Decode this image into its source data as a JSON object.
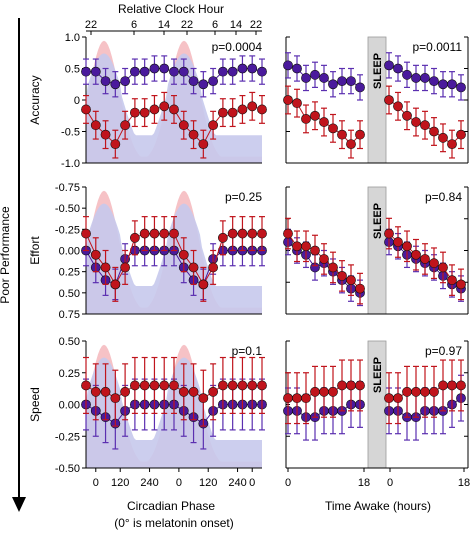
{
  "figure": {
    "top_axis_label": "Relative Clock Hour",
    "top_ticks": [
      "22",
      "6",
      "14",
      "22",
      "6",
      "14",
      "22"
    ],
    "side_label": "Poor Performance",
    "left_xlabel": "Circadian Phase",
    "left_note": "(0° is melatonin onset)",
    "right_xlabel": "Time Awake (hours)",
    "left_xticks": [
      "0",
      "120",
      "240",
      "0",
      "120",
      "240",
      "0"
    ],
    "right_xticks": [
      "0",
      "18",
      "0",
      "18"
    ],
    "sleep_label": "SLEEP",
    "colors": {
      "red_series": "#c0141c",
      "blue_series": "#4a1a9c",
      "red_shade": "#f6c2c6",
      "blue_shade": "#c7c9ec",
      "sleep_box": "#d6d6d6",
      "error_red": "#c0141c",
      "error_blue": "#5b2fb0"
    }
  },
  "chart_data": [
    {
      "panel": "accuracy-phase",
      "type": "line",
      "ylabel": "Accuracy",
      "ylim": [
        -1.0,
        1.0
      ],
      "yticks": [
        "1.0",
        "0.5",
        "0",
        "-0.5",
        "-1.0"
      ],
      "pvalue": "p=0.0004",
      "x": [
        -20,
        20,
        60,
        100,
        140,
        180,
        220,
        260,
        300,
        340,
        380,
        420,
        460,
        500,
        540,
        580,
        620,
        660,
        700
      ],
      "series": [
        {
          "color": "blue",
          "values": [
            0.45,
            0.45,
            0.3,
            0.25,
            0.3,
            0.45,
            0.45,
            0.5,
            0.5,
            0.45,
            0.45,
            0.3,
            0.25,
            0.3,
            0.45,
            0.45,
            0.5,
            0.5,
            0.45
          ],
          "err": [
            0.2,
            0.2,
            0.2,
            0.2,
            0.2,
            0.2,
            0.2,
            0.2,
            0.2,
            0.2,
            0.2,
            0.2,
            0.2,
            0.2,
            0.2,
            0.2,
            0.2,
            0.2,
            0.2
          ]
        },
        {
          "color": "red",
          "values": [
            -0.15,
            -0.4,
            -0.55,
            -0.7,
            -0.4,
            -0.2,
            -0.2,
            -0.15,
            -0.1,
            -0.15,
            -0.4,
            -0.55,
            -0.7,
            -0.4,
            -0.2,
            -0.2,
            -0.15,
            -0.1,
            -0.15
          ],
          "err": [
            0.22,
            0.22,
            0.22,
            0.22,
            0.22,
            0.22,
            0.22,
            0.22,
            0.22,
            0.22,
            0.22,
            0.22,
            0.22,
            0.22,
            0.22,
            0.22,
            0.22,
            0.22,
            0.22
          ]
        }
      ]
    },
    {
      "panel": "accuracy-awake",
      "type": "line",
      "ylim": [
        -1.0,
        1.0
      ],
      "pvalue": "p=0.0011",
      "sleep": true,
      "segments": [
        {
          "x": [
            0,
            2,
            4,
            6,
            8,
            10,
            12,
            14,
            16
          ],
          "series": [
            {
              "color": "blue",
              "values": [
                0.55,
                0.5,
                0.35,
                0.4,
                0.35,
                0.25,
                0.3,
                0.3,
                0.2
              ],
              "err": [
                0.2,
                0.2,
                0.2,
                0.2,
                0.2,
                0.2,
                0.2,
                0.2,
                0.2
              ]
            },
            {
              "color": "red",
              "values": [
                0.0,
                -0.05,
                -0.3,
                -0.25,
                -0.35,
                -0.45,
                -0.55,
                -0.7,
                -0.55
              ],
              "err": [
                0.22,
                0.22,
                0.22,
                0.22,
                0.22,
                0.22,
                0.22,
                0.22,
                0.22
              ]
            }
          ]
        },
        {
          "x": [
            0,
            2,
            4,
            6,
            8,
            10,
            12,
            14,
            16
          ],
          "series": [
            {
              "color": "blue",
              "values": [
                0.55,
                0.5,
                0.4,
                0.35,
                0.35,
                0.3,
                0.25,
                0.25,
                0.2
              ],
              "err": [
                0.2,
                0.2,
                0.2,
                0.2,
                0.2,
                0.2,
                0.2,
                0.2,
                0.2
              ]
            },
            {
              "color": "red",
              "values": [
                0.0,
                -0.1,
                -0.25,
                -0.35,
                -0.4,
                -0.5,
                -0.6,
                -0.7,
                -0.55
              ],
              "err": [
                0.22,
                0.22,
                0.22,
                0.22,
                0.22,
                0.22,
                0.22,
                0.22,
                0.22
              ]
            }
          ]
        }
      ]
    },
    {
      "panel": "effort-phase",
      "type": "line",
      "ylabel": "Effort",
      "ylim": [
        -0.75,
        0.75
      ],
      "inverted": true,
      "yticks": [
        "-0.75",
        "-0.50",
        "-0.25",
        "0.00",
        "0.25",
        "0.50",
        "0.75"
      ],
      "pvalue": "p=0.25",
      "x": [
        -20,
        20,
        60,
        100,
        140,
        180,
        220,
        260,
        300,
        340,
        380,
        420,
        460,
        500,
        540,
        580,
        620,
        660,
        700
      ],
      "series": [
        {
          "color": "blue",
          "values": [
            0.0,
            0.2,
            0.35,
            0.4,
            0.1,
            0.0,
            0.0,
            0.0,
            0.0,
            0.0,
            0.2,
            0.35,
            0.4,
            0.1,
            0.0,
            0.0,
            0.0,
            0.0,
            0.0
          ],
          "err": [
            0.18,
            0.18,
            0.18,
            0.18,
            0.18,
            0.18,
            0.18,
            0.18,
            0.18,
            0.18,
            0.18,
            0.18,
            0.18,
            0.18,
            0.18,
            0.18,
            0.18,
            0.18,
            0.18
          ]
        },
        {
          "color": "red",
          "values": [
            -0.2,
            0.05,
            0.2,
            0.4,
            0.2,
            -0.15,
            -0.2,
            -0.2,
            -0.2,
            -0.2,
            0.05,
            0.2,
            0.4,
            0.2,
            -0.15,
            -0.2,
            -0.2,
            -0.2,
            -0.2
          ],
          "err": [
            0.2,
            0.2,
            0.2,
            0.2,
            0.2,
            0.2,
            0.2,
            0.2,
            0.2,
            0.2,
            0.2,
            0.2,
            0.2,
            0.2,
            0.2,
            0.2,
            0.2,
            0.2,
            0.2
          ]
        }
      ]
    },
    {
      "panel": "effort-awake",
      "type": "line",
      "ylim": [
        -0.75,
        0.75
      ],
      "inverted": true,
      "pvalue": "p=0.84",
      "sleep": true,
      "segments": [
        {
          "x": [
            0,
            2,
            4,
            6,
            8,
            10,
            12,
            14,
            16
          ],
          "series": [
            {
              "color": "blue",
              "values": [
                -0.1,
                0.0,
                0.05,
                0.2,
                0.15,
                0.25,
                0.35,
                0.45,
                0.5
              ],
              "err": [
                0.15,
                0.15,
                0.15,
                0.15,
                0.15,
                0.15,
                0.15,
                0.15,
                0.15
              ]
            },
            {
              "color": "red",
              "values": [
                -0.2,
                -0.05,
                -0.05,
                0.0,
                0.1,
                0.2,
                0.3,
                0.35,
                0.45
              ],
              "err": [
                0.18,
                0.18,
                0.18,
                0.18,
                0.18,
                0.18,
                0.18,
                0.18,
                0.18
              ]
            }
          ]
        },
        {
          "x": [
            0,
            2,
            4,
            6,
            8,
            10,
            12,
            14,
            16
          ],
          "series": [
            {
              "color": "blue",
              "values": [
                -0.1,
                -0.05,
                0.05,
                0.1,
                0.15,
                0.2,
                0.3,
                0.4,
                0.45
              ],
              "err": [
                0.15,
                0.15,
                0.15,
                0.15,
                0.15,
                0.15,
                0.15,
                0.15,
                0.15
              ]
            },
            {
              "color": "red",
              "values": [
                -0.2,
                -0.1,
                -0.05,
                0.05,
                0.1,
                0.15,
                0.2,
                0.35,
                0.4
              ],
              "err": [
                0.18,
                0.18,
                0.18,
                0.18,
                0.18,
                0.18,
                0.18,
                0.18,
                0.18
              ]
            }
          ]
        }
      ]
    },
    {
      "panel": "speed-phase",
      "type": "line",
      "ylabel": "Speed",
      "ylim": [
        -0.5,
        0.5
      ],
      "yticks": [
        "0.50",
        "0.25",
        "0.00",
        "-0.25",
        "-0.50"
      ],
      "pvalue": "p=0.1",
      "x": [
        -20,
        20,
        60,
        100,
        140,
        180,
        220,
        260,
        300,
        340,
        380,
        420,
        460,
        500,
        540,
        580,
        620,
        660,
        700
      ],
      "series": [
        {
          "color": "blue",
          "values": [
            0.0,
            -0.05,
            -0.1,
            -0.15,
            -0.05,
            0.0,
            0.0,
            0.0,
            0.0,
            0.0,
            -0.05,
            -0.1,
            -0.15,
            -0.05,
            0.0,
            0.0,
            0.0,
            0.0,
            0.0
          ],
          "err": [
            0.2,
            0.2,
            0.2,
            0.2,
            0.2,
            0.2,
            0.2,
            0.2,
            0.2,
            0.2,
            0.2,
            0.2,
            0.2,
            0.2,
            0.2,
            0.2,
            0.2,
            0.2,
            0.2
          ]
        },
        {
          "color": "red",
          "values": [
            0.15,
            0.1,
            0.1,
            0.05,
            0.1,
            0.15,
            0.15,
            0.15,
            0.15,
            0.15,
            0.1,
            0.1,
            0.05,
            0.1,
            0.15,
            0.15,
            0.15,
            0.15,
            0.15
          ],
          "err": [
            0.22,
            0.22,
            0.22,
            0.22,
            0.22,
            0.22,
            0.22,
            0.22,
            0.22,
            0.22,
            0.22,
            0.22,
            0.22,
            0.22,
            0.22,
            0.22,
            0.22,
            0.22,
            0.22
          ]
        }
      ]
    },
    {
      "panel": "speed-awake",
      "type": "line",
      "ylim": [
        -0.5,
        0.5
      ],
      "pvalue": "p=0.97",
      "sleep": true,
      "segments": [
        {
          "x": [
            0,
            2,
            4,
            6,
            8,
            10,
            12,
            14,
            16
          ],
          "series": [
            {
              "color": "blue",
              "values": [
                -0.05,
                -0.05,
                -0.1,
                -0.1,
                -0.05,
                -0.05,
                -0.05,
                0.0,
                0.0
              ],
              "err": [
                0.18,
                0.18,
                0.18,
                0.18,
                0.18,
                0.18,
                0.18,
                0.18,
                0.18
              ]
            },
            {
              "color": "red",
              "values": [
                0.05,
                0.05,
                0.05,
                0.1,
                0.1,
                0.1,
                0.15,
                0.15,
                0.15
              ],
              "err": [
                0.2,
                0.2,
                0.2,
                0.2,
                0.2,
                0.2,
                0.2,
                0.2,
                0.2
              ]
            }
          ]
        },
        {
          "x": [
            0,
            2,
            4,
            6,
            8,
            10,
            12,
            14,
            16
          ],
          "series": [
            {
              "color": "blue",
              "values": [
                -0.05,
                -0.05,
                -0.1,
                -0.1,
                -0.05,
                -0.05,
                -0.05,
                0.0,
                0.05
              ],
              "err": [
                0.18,
                0.18,
                0.18,
                0.18,
                0.18,
                0.18,
                0.18,
                0.18,
                0.18
              ]
            },
            {
              "color": "red",
              "values": [
                0.05,
                0.05,
                0.1,
                0.1,
                0.1,
                0.1,
                0.15,
                0.15,
                0.15
              ],
              "err": [
                0.2,
                0.2,
                0.2,
                0.2,
                0.2,
                0.2,
                0.2,
                0.2,
                0.2
              ]
            }
          ]
        }
      ]
    }
  ]
}
